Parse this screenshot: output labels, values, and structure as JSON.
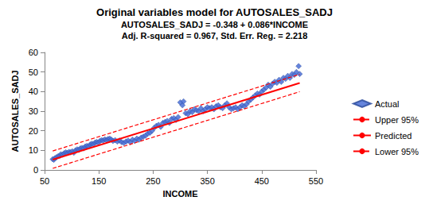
{
  "chart_data": {
    "type": "scatter",
    "title": "Original variables model for AUTOSALES_SADJ",
    "subtitle": [
      "AUTOSALES_SADJ = -0.348 + 0.086*INCOME",
      "Adj. R-squared = 0.967, Std. Err. Reg. = 2.218"
    ],
    "x_label": "INCOME",
    "y_label": "AUTOSALES_SADJ",
    "xlim": [
      50,
      550
    ],
    "xticks": [
      50,
      150,
      250,
      350,
      450,
      550
    ],
    "ylim": [
      0,
      60
    ],
    "yticks": [
      0,
      10,
      20,
      30,
      40,
      50,
      60
    ],
    "grid": false,
    "legend": "right",
    "series": [
      {
        "name": "Actual",
        "type": "scatter",
        "marker": "diamond",
        "color": "#4a6fd6",
        "x": [
          65,
          67,
          69,
          72,
          75,
          78,
          80,
          83,
          86,
          89,
          92,
          95,
          98,
          101,
          104,
          107,
          110,
          113,
          116,
          119,
          122,
          125,
          128,
          131,
          134,
          137,
          140,
          143,
          146,
          149,
          152,
          155,
          158,
          161,
          164,
          167,
          170,
          173,
          176,
          180,
          184,
          188,
          192,
          196,
          200,
          204,
          208,
          212,
          216,
          220,
          224,
          228,
          232,
          236,
          240,
          244,
          248,
          252,
          256,
          260,
          264,
          268,
          272,
          276,
          280,
          284,
          288,
          292,
          296,
          300,
          304,
          306,
          310,
          314,
          318,
          322,
          326,
          330,
          334,
          338,
          342,
          346,
          350,
          354,
          358,
          362,
          366,
          370,
          374,
          378,
          382,
          386,
          390,
          394,
          398,
          402,
          406,
          410,
          414,
          418,
          422,
          426,
          430,
          434,
          438,
          442,
          446,
          450,
          454,
          458,
          462,
          466,
          470,
          474,
          478,
          482,
          486,
          490,
          494,
          498,
          502,
          506,
          510,
          514,
          518,
          520
        ],
        "values": [
          5.5,
          5.2,
          6,
          6.5,
          7,
          7.2,
          8,
          7.8,
          8.5,
          9,
          8.7,
          9.2,
          9,
          9.5,
          8.8,
          10,
          10.5,
          10.2,
          11,
          11.3,
          11,
          12,
          12.3,
          12,
          13,
          13.4,
          13.2,
          14,
          14.3,
          14,
          14.8,
          15.2,
          15,
          15.6,
          15.3,
          15.8,
          16,
          15.5,
          14.8,
          15.2,
          14.5,
          15,
          14.2,
          13.8,
          14.5,
          15,
          14.2,
          15.5,
          14.8,
          16,
          15.5,
          16.5,
          17,
          17.5,
          18.5,
          19,
          20,
          21.5,
          22.5,
          23,
          22,
          24,
          24.5,
          25,
          24,
          26,
          26.5,
          25.5,
          27,
          34.5,
          33,
          35,
          29,
          28.5,
          30,
          29.5,
          31,
          30.5,
          30,
          31.5,
          30,
          31,
          32,
          31.5,
          32,
          31,
          32.5,
          33,
          32,
          31.5,
          33,
          34,
          32,
          31,
          31.5,
          32,
          31,
          32,
          33,
          32.5,
          33.5,
          35,
          36,
          37,
          38,
          39,
          38.5,
          40,
          41,
          42,
          43.5,
          42.5,
          44,
          45,
          44.5,
          46,
          45,
          47,
          46.5,
          48,
          47,
          49,
          48.5,
          50,
          53,
          49
        ]
      },
      {
        "name": "Upper 95%",
        "type": "line",
        "line_style": "dashed",
        "color": "#ff0000",
        "x": [
          65,
          520
        ],
        "values": [
          9.68,
          48.81
        ]
      },
      {
        "name": "Predicted",
        "type": "line",
        "line_style": "solid",
        "color": "#ff0000",
        "x": [
          65,
          520
        ],
        "values": [
          5.24,
          44.37
        ]
      },
      {
        "name": "Lower 95%",
        "type": "line",
        "line_style": "dashed",
        "color": "#ff0000",
        "x": [
          65,
          520
        ],
        "values": [
          0.8,
          39.93
        ]
      }
    ]
  }
}
